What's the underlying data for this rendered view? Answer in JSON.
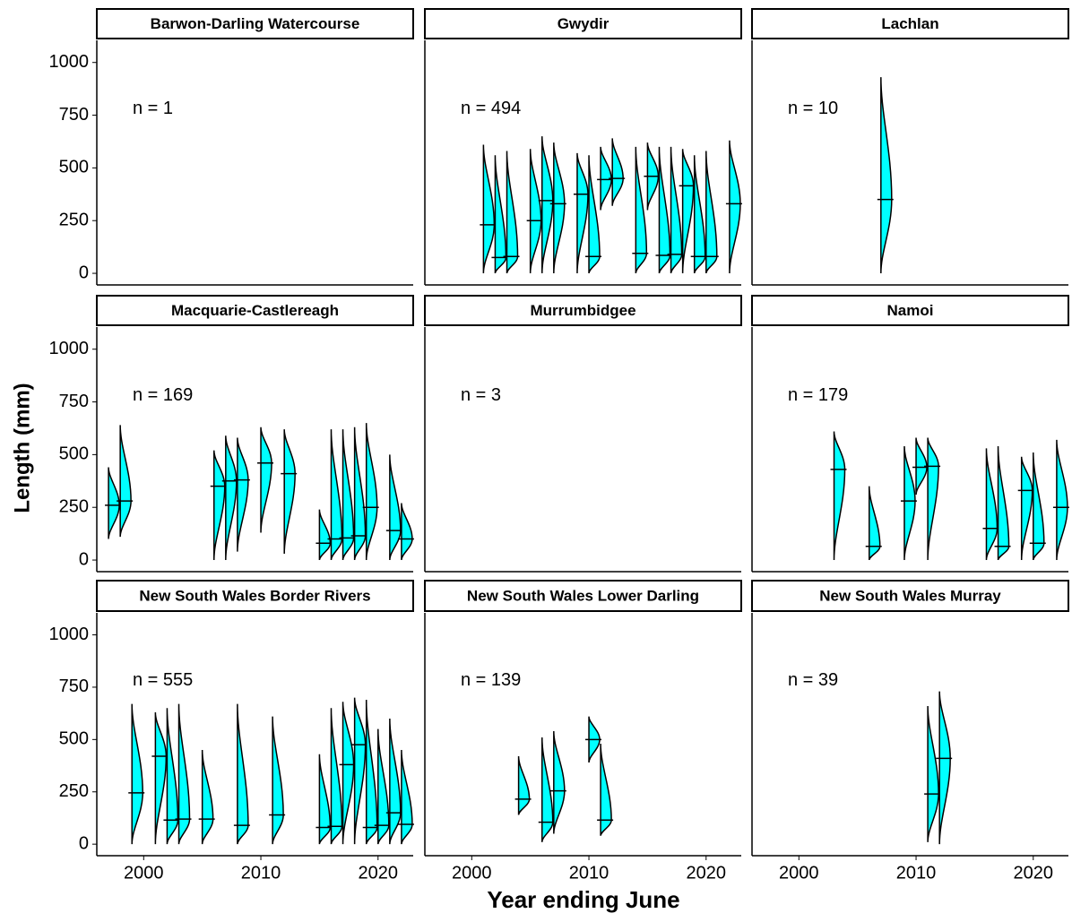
{
  "chart_data": {
    "type": "violin",
    "xlabel": "Year ending June",
    "ylabel": "Length (mm)",
    "xlim": [
      1996,
      2023
    ],
    "xticks": [
      2000,
      2010,
      2020
    ],
    "ylim": [
      -55,
      1105
    ],
    "yticks": [
      0,
      250,
      500,
      750,
      1000
    ],
    "color": "#00ffff",
    "panels": [
      {
        "title": "Barwon-Darling Watercourse",
        "annotation": "n = 1",
        "x": [],
        "min": [],
        "median": [],
        "max": []
      },
      {
        "title": "Gwydir",
        "annotation": "n = 494",
        "x": [
          2001,
          2002,
          2003,
          2005,
          2006,
          2007,
          2009,
          2010,
          2011,
          2012,
          2014,
          2015,
          2016,
          2017,
          2018,
          2019,
          2020,
          2022
        ],
        "min": [
          0,
          0,
          0,
          0,
          0,
          0,
          0,
          0,
          300,
          320,
          0,
          300,
          0,
          0,
          0,
          0,
          0,
          0
        ],
        "median": [
          230,
          75,
          80,
          250,
          345,
          330,
          375,
          80,
          445,
          450,
          95,
          460,
          85,
          90,
          415,
          80,
          80,
          330
        ],
        "max": [
          610,
          560,
          580,
          590,
          650,
          620,
          570,
          560,
          600,
          640,
          600,
          620,
          600,
          600,
          590,
          560,
          580,
          630
        ]
      },
      {
        "title": "Lachlan",
        "annotation": "n = 10",
        "x": [
          2007
        ],
        "min": [
          0
        ],
        "median": [
          350
        ],
        "max": [
          930
        ]
      },
      {
        "title": "Macquarie-Castlereagh",
        "annotation": "n = 169",
        "x": [
          1997,
          1998,
          2006,
          2007,
          2008,
          2010,
          2012,
          2015,
          2016,
          2017,
          2018,
          2019,
          2021,
          2022
        ],
        "min": [
          100,
          110,
          0,
          0,
          40,
          130,
          30,
          0,
          0,
          0,
          0,
          0,
          0,
          0
        ],
        "median": [
          260,
          280,
          350,
          375,
          380,
          460,
          410,
          80,
          100,
          105,
          115,
          250,
          140,
          100
        ],
        "max": [
          440,
          640,
          520,
          590,
          580,
          630,
          620,
          240,
          620,
          620,
          630,
          650,
          500,
          270
        ]
      },
      {
        "title": "Murrumbidgee",
        "annotation": "n = 3",
        "x": [],
        "min": [],
        "median": [],
        "max": []
      },
      {
        "title": "Namoi",
        "annotation": "n = 179",
        "x": [
          2003,
          2006,
          2009,
          2010,
          2011,
          2016,
          2017,
          2019,
          2020,
          2022
        ],
        "min": [
          0,
          0,
          0,
          310,
          0,
          0,
          0,
          0,
          0,
          0
        ],
        "median": [
          430,
          65,
          280,
          440,
          445,
          150,
          65,
          330,
          80,
          250
        ],
        "max": [
          610,
          350,
          540,
          580,
          580,
          530,
          540,
          490,
          510,
          570
        ]
      },
      {
        "title": "New South Wales Border Rivers",
        "annotation": "n = 555",
        "x": [
          1999,
          2001,
          2002,
          2003,
          2005,
          2008,
          2011,
          2015,
          2016,
          2017,
          2018,
          2019,
          2020,
          2021,
          2022
        ],
        "min": [
          0,
          0,
          0,
          0,
          0,
          0,
          0,
          0,
          0,
          0,
          0,
          0,
          0,
          0,
          0
        ],
        "median": [
          245,
          420,
          115,
          120,
          120,
          90,
          140,
          80,
          85,
          380,
          475,
          80,
          90,
          150,
          95
        ],
        "max": [
          670,
          630,
          650,
          670,
          450,
          670,
          610,
          430,
          650,
          680,
          700,
          690,
          550,
          600,
          450
        ]
      },
      {
        "title": "New South Wales Lower Darling",
        "annotation": "n = 139",
        "x": [
          2004,
          2006,
          2007,
          2010,
          2011
        ],
        "min": [
          140,
          10,
          50,
          390,
          40
        ],
        "median": [
          215,
          105,
          255,
          500,
          115
        ],
        "max": [
          420,
          510,
          540,
          610,
          480
        ]
      },
      {
        "title": "New South Wales Murray",
        "annotation": "n = 39",
        "x": [
          2011,
          2012
        ],
        "min": [
          10,
          0
        ],
        "median": [
          240,
          410
        ],
        "max": [
          660,
          730
        ]
      }
    ]
  }
}
